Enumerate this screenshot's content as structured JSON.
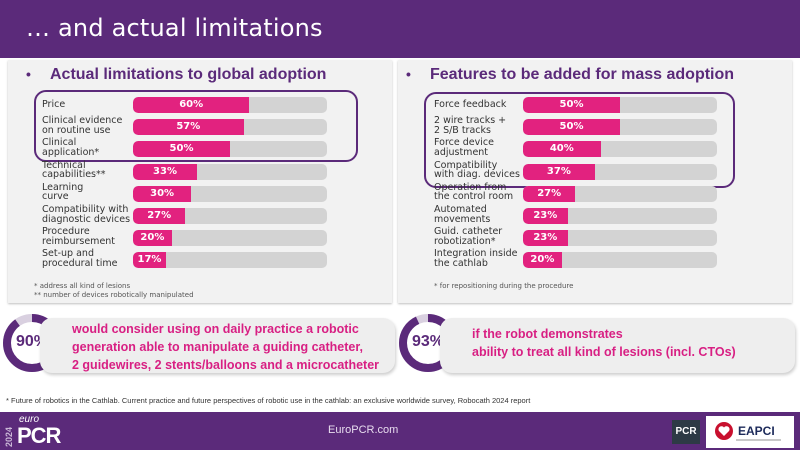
{
  "header": {
    "title": "… and actual limitations"
  },
  "left_panel": {
    "bullet": "•",
    "heading": "Actual limitations to global adoption",
    "rows": [
      {
        "label": [
          "Price"
        ],
        "value": 60,
        "value_label": "60%",
        "highlighted": true
      },
      {
        "label": [
          "Clinical evidence",
          "on routine use"
        ],
        "value": 57,
        "value_label": "57%",
        "highlighted": true
      },
      {
        "label": [
          "Clinical",
          "application*"
        ],
        "value": 50,
        "value_label": "50%",
        "highlighted": true
      },
      {
        "label": [
          "Technical",
          "capabilities**"
        ],
        "value": 33,
        "value_label": "33%",
        "highlighted": false
      },
      {
        "label": [
          "Learning",
          "curve"
        ],
        "value": 30,
        "value_label": "30%",
        "highlighted": false
      },
      {
        "label": [
          "Compatibility with",
          "diagnostic devices"
        ],
        "value": 27,
        "value_label": "27%",
        "highlighted": false
      },
      {
        "label": [
          "Procedure",
          "reimbursement"
        ],
        "value": 20,
        "value_label": "20%",
        "highlighted": false
      },
      {
        "label": [
          "Set-up and",
          "procedural time"
        ],
        "value": 17,
        "value_label": "17%",
        "highlighted": false
      }
    ],
    "footnotes": [
      "* address all kind of lesions",
      "** number of devices robotically manipulated"
    ]
  },
  "right_panel": {
    "bullet": "•",
    "heading": "Features to be added for mass adoption",
    "rows": [
      {
        "label": [
          "Force feedback"
        ],
        "value": 50,
        "value_label": "50%",
        "highlighted": true
      },
      {
        "label": [
          "2 wire tracks +",
          "2 S/B tracks"
        ],
        "value": 50,
        "value_label": "50%",
        "highlighted": true
      },
      {
        "label": [
          "Force device",
          "adjustment"
        ],
        "value": 40,
        "value_label": "40%",
        "highlighted": true
      },
      {
        "label": [
          "Compatibility",
          "with diag. devices"
        ],
        "value": 37,
        "value_label": "37%",
        "highlighted": true
      },
      {
        "label": [
          "Operation from",
          "the control room"
        ],
        "value": 27,
        "value_label": "27%",
        "highlighted": false
      },
      {
        "label": [
          "Automated",
          "movements"
        ],
        "value": 23,
        "value_label": "23%",
        "highlighted": false
      },
      {
        "label": [
          "Guid. catheter",
          "robotization*"
        ],
        "value": 23,
        "value_label": "23%",
        "highlighted": false
      },
      {
        "label": [
          "Integration inside",
          "the cathlab"
        ],
        "value": 20,
        "value_label": "20%",
        "highlighted": false
      }
    ],
    "footnotes": [
      "* for repositioning during the procedure"
    ]
  },
  "callouts": [
    {
      "percent_label": "90%",
      "percent": 90,
      "lines": [
        "would consider using on daily practice a robotic",
        "generation able to manipulate a guiding catheter,",
        "2 guidewires, 2 stents/balloons and a microcatheter"
      ]
    },
    {
      "percent_label": "93%",
      "percent": 93,
      "lines": [
        "if the robot demonstrates",
        "ability to treat all kind of lesions (incl. CTOs)"
      ]
    }
  ],
  "source": "* Future of robotics in the Cathlab. Current practice and future perspectives of robotic use in the cathlab: an exclusive worldwide survey, Robocath 2024 report",
  "footer": {
    "url": "EuroPCR.com",
    "logo_year": "2024",
    "logo_euro": "euro",
    "logo_pcr": "PCR",
    "pcr_badge": "PCR",
    "eapci_badge": "EAPCI"
  },
  "colors": {
    "brand_purple": "#5b2a7a",
    "bar_pink": "#e2227f",
    "bar_track": "#d3d3d3",
    "callout_text": "#d81f83"
  }
}
